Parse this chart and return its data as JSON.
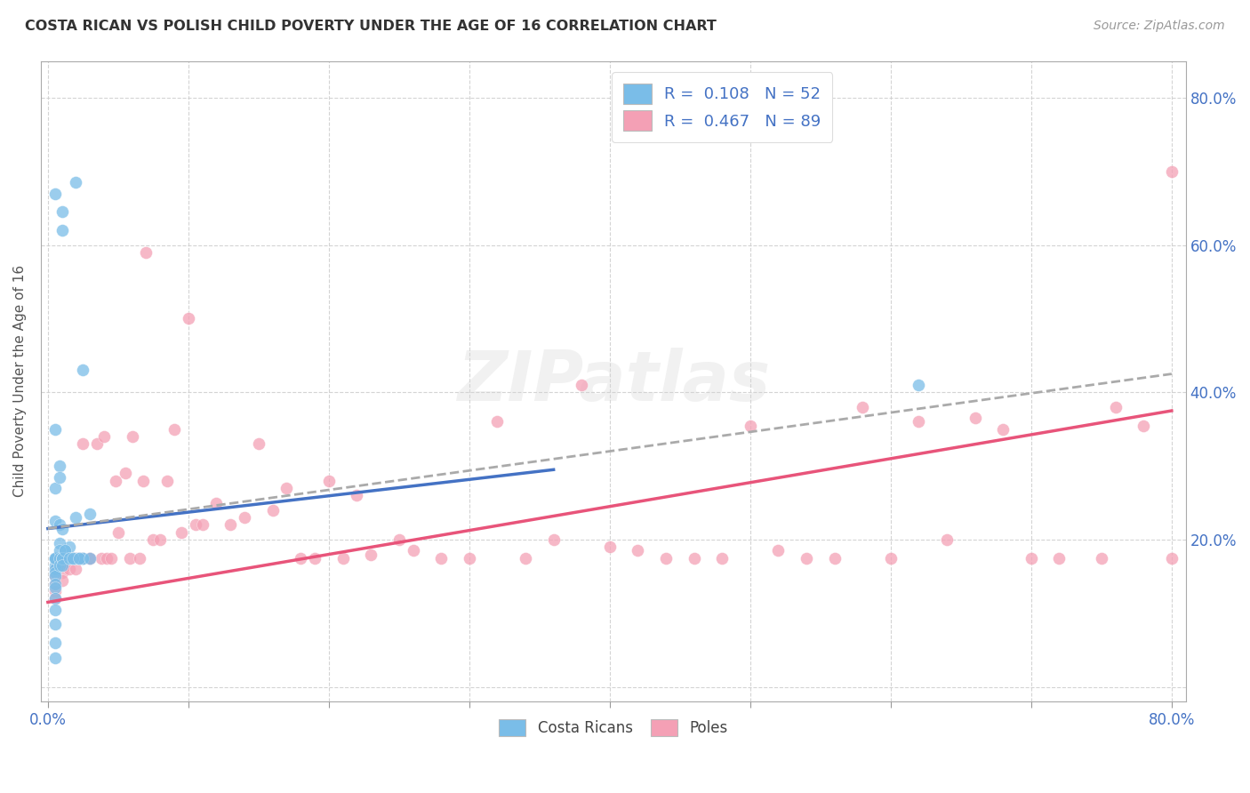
{
  "title": "COSTA RICAN VS POLISH CHILD POVERTY UNDER THE AGE OF 16 CORRELATION CHART",
  "source": "Source: ZipAtlas.com",
  "ylabel": "Child Poverty Under the Age of 16",
  "xlim": [
    -0.005,
    0.81
  ],
  "ylim": [
    -0.02,
    0.85
  ],
  "color_costa": "#7abde8",
  "color_poland": "#f4a0b5",
  "color_trendline_costa": "#4472c4",
  "color_trendline_poland": "#e8547a",
  "color_trendline_dashed": "#aaaaaa",
  "background_color": "#ffffff",
  "grid_color": "#d0d0d0",
  "title_color": "#333333",
  "axis_label_color": "#4472c4",
  "trendline_costa_x0": 0.0,
  "trendline_costa_y0": 0.215,
  "trendline_costa_x1": 0.36,
  "trendline_costa_y1": 0.295,
  "trendline_poland_x0": 0.0,
  "trendline_poland_y0": 0.115,
  "trendline_poland_x1": 0.8,
  "trendline_poland_y1": 0.375,
  "trendline_dashed_x0": 0.0,
  "trendline_dashed_y0": 0.215,
  "trendline_dashed_x1": 0.8,
  "trendline_dashed_y1": 0.425,
  "costa_x": [
    0.005,
    0.01,
    0.01,
    0.02,
    0.025,
    0.005,
    0.005,
    0.005,
    0.008,
    0.008,
    0.008,
    0.01,
    0.012,
    0.012,
    0.015,
    0.015,
    0.018,
    0.02,
    0.02,
    0.022,
    0.025,
    0.025,
    0.03,
    0.005,
    0.005,
    0.005,
    0.005,
    0.005,
    0.005,
    0.005,
    0.005,
    0.005,
    0.005,
    0.005,
    0.005,
    0.005,
    0.005,
    0.005,
    0.005,
    0.008,
    0.008,
    0.008,
    0.008,
    0.01,
    0.01,
    0.01,
    0.012,
    0.015,
    0.018,
    0.022,
    0.03,
    0.62
  ],
  "costa_y": [
    0.67,
    0.645,
    0.62,
    0.685,
    0.43,
    0.35,
    0.27,
    0.225,
    0.3,
    0.285,
    0.22,
    0.215,
    0.185,
    0.175,
    0.19,
    0.175,
    0.175,
    0.23,
    0.175,
    0.175,
    0.175,
    0.175,
    0.235,
    0.175,
    0.175,
    0.175,
    0.165,
    0.16,
    0.155,
    0.15,
    0.14,
    0.135,
    0.12,
    0.105,
    0.085,
    0.06,
    0.04,
    0.175,
    0.175,
    0.195,
    0.185,
    0.175,
    0.165,
    0.175,
    0.175,
    0.165,
    0.185,
    0.175,
    0.175,
    0.175,
    0.175,
    0.41
  ],
  "poland_x": [
    0.005,
    0.005,
    0.005,
    0.005,
    0.005,
    0.005,
    0.005,
    0.005,
    0.005,
    0.005,
    0.01,
    0.01,
    0.01,
    0.01,
    0.012,
    0.012,
    0.015,
    0.015,
    0.018,
    0.02,
    0.02,
    0.022,
    0.025,
    0.025,
    0.03,
    0.03,
    0.035,
    0.038,
    0.04,
    0.042,
    0.045,
    0.048,
    0.05,
    0.055,
    0.058,
    0.06,
    0.065,
    0.068,
    0.07,
    0.075,
    0.08,
    0.085,
    0.09,
    0.095,
    0.1,
    0.105,
    0.11,
    0.12,
    0.13,
    0.14,
    0.15,
    0.16,
    0.17,
    0.18,
    0.19,
    0.2,
    0.21,
    0.22,
    0.23,
    0.25,
    0.26,
    0.28,
    0.3,
    0.32,
    0.34,
    0.36,
    0.38,
    0.4,
    0.42,
    0.44,
    0.46,
    0.48,
    0.5,
    0.52,
    0.54,
    0.56,
    0.58,
    0.6,
    0.62,
    0.64,
    0.66,
    0.68,
    0.7,
    0.72,
    0.75,
    0.76,
    0.78,
    0.8,
    0.8
  ],
  "poland_y": [
    0.175,
    0.175,
    0.175,
    0.175,
    0.175,
    0.16,
    0.15,
    0.14,
    0.13,
    0.12,
    0.175,
    0.165,
    0.155,
    0.145,
    0.175,
    0.165,
    0.175,
    0.16,
    0.175,
    0.16,
    0.175,
    0.175,
    0.175,
    0.33,
    0.175,
    0.175,
    0.33,
    0.175,
    0.34,
    0.175,
    0.175,
    0.28,
    0.21,
    0.29,
    0.175,
    0.34,
    0.175,
    0.28,
    0.59,
    0.2,
    0.2,
    0.28,
    0.35,
    0.21,
    0.5,
    0.22,
    0.22,
    0.25,
    0.22,
    0.23,
    0.33,
    0.24,
    0.27,
    0.175,
    0.175,
    0.28,
    0.175,
    0.26,
    0.18,
    0.2,
    0.185,
    0.175,
    0.175,
    0.36,
    0.175,
    0.2,
    0.41,
    0.19,
    0.185,
    0.175,
    0.175,
    0.175,
    0.355,
    0.185,
    0.175,
    0.175,
    0.38,
    0.175,
    0.36,
    0.2,
    0.365,
    0.35,
    0.175,
    0.175,
    0.175,
    0.38,
    0.355,
    0.175,
    0.7
  ]
}
